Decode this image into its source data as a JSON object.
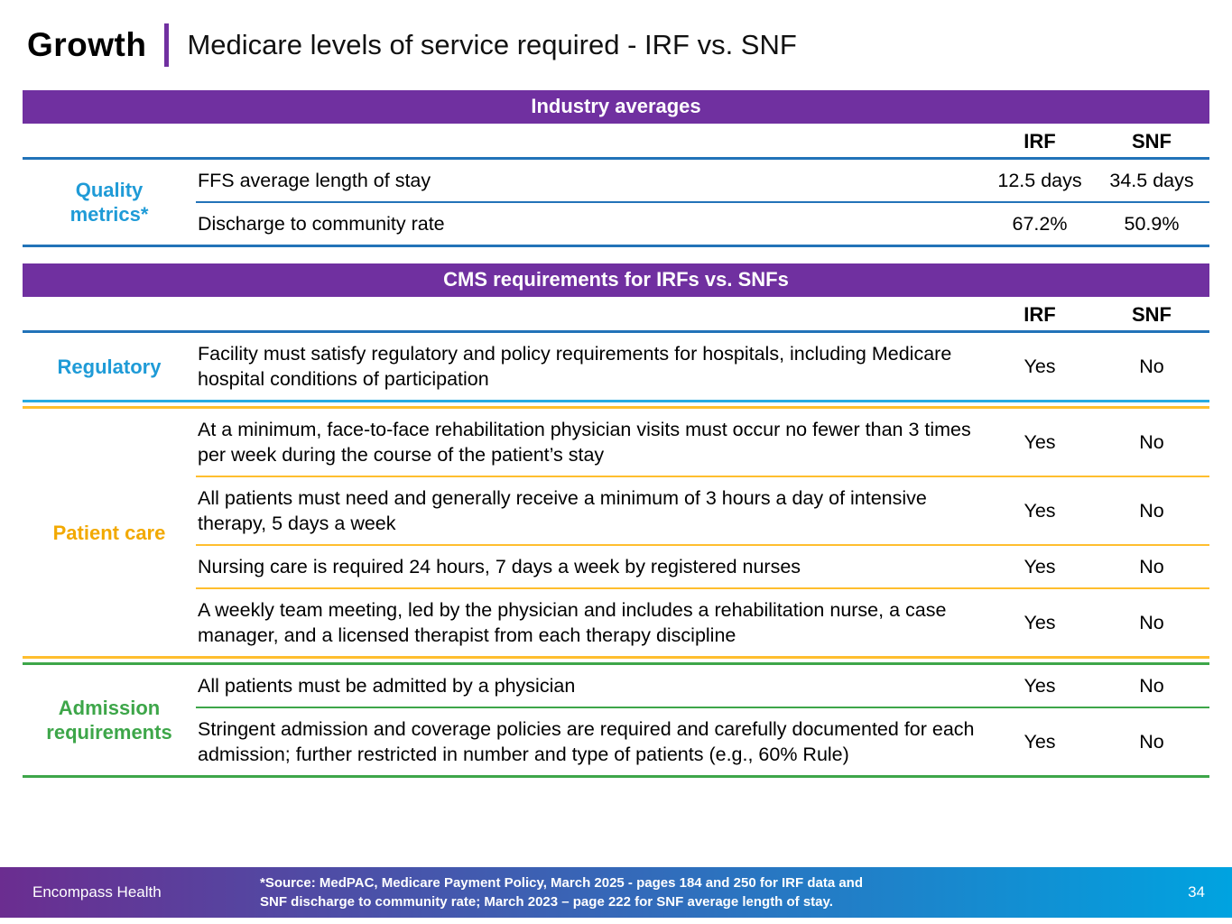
{
  "header": {
    "section": "Growth",
    "title": "Medicare levels of service required - IRF vs. SNF"
  },
  "columns": {
    "irf": "IRF",
    "snf": "SNF"
  },
  "industry": {
    "banner": "Industry averages",
    "group_label": "Quality metrics*",
    "rows": [
      {
        "desc": "FFS average length of stay",
        "irf": "12.5 days",
        "snf": "34.5 days"
      },
      {
        "desc": "Discharge to community rate",
        "irf": "67.2%",
        "snf": "50.9%"
      }
    ]
  },
  "cms": {
    "banner": "CMS requirements for IRFs vs. SNFs",
    "sections": [
      {
        "label": "Regulatory",
        "rows": [
          {
            "desc": "Facility must satisfy regulatory and policy requirements for hospitals, including Medicare hospital conditions of participation",
            "irf": "Yes",
            "snf": "No"
          }
        ]
      },
      {
        "label": "Patient care",
        "rows": [
          {
            "desc": "At a minimum, face-to-face rehabilitation physician visits must occur no fewer than 3 times per week during the course of the patient’s stay",
            "irf": "Yes",
            "snf": "No"
          },
          {
            "desc": "All patients must need and generally receive a minimum of 3 hours a day of intensive therapy, 5 days a week",
            "irf": "Yes",
            "snf": "No"
          },
          {
            "desc": "Nursing care is required 24 hours, 7 days a week by registered nurses",
            "irf": "Yes",
            "snf": "No"
          },
          {
            "desc": "A weekly team meeting, led by the physician and includes a rehabilitation nurse, a case manager, and a licensed therapist from each therapy discipline",
            "irf": "Yes",
            "snf": "No"
          }
        ]
      },
      {
        "label": "Admission requirements",
        "rows": [
          {
            "desc": "All patients must be admitted by a physician",
            "irf": "Yes",
            "snf": "No"
          },
          {
            "desc": "Stringent admission and coverage policies are required and carefully documented for each admission; further restricted in number and type of patients (e.g., 60% Rule)",
            "irf": "Yes",
            "snf": "No"
          }
        ]
      }
    ]
  },
  "footer": {
    "brand": "Encompass Health",
    "source_line1": "*Source: MedPAC, Medicare Payment Policy, March 2025 - pages 184 and 250 for IRF data and",
    "source_line2": "SNF discharge to community rate; March 2023 – page 222 for SNF average length of stay.",
    "page_number": "34"
  },
  "colors": {
    "purple": "#7030A0",
    "blue": "#2273B8",
    "cyan": "#29ABE2",
    "cyan_label": "#1F9BD7",
    "gold": "#F2A900",
    "gold_line": "#FFBE2E",
    "green": "#3DA649",
    "footer_left": "#6B2D90",
    "footer_right": "#00A3E0"
  }
}
